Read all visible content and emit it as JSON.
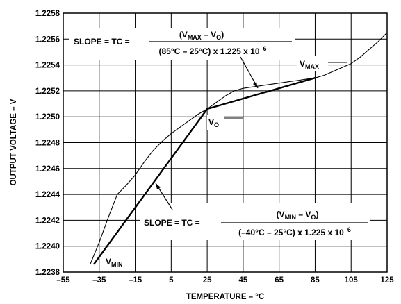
{
  "chart_data": {
    "type": "line",
    "xlabel": "TEMPERATURE – °C",
    "ylabel": "OUTPUT VOLTAGE – V",
    "xlim": [
      -55,
      125
    ],
    "ylim": [
      1.2238,
      1.2258
    ],
    "x_ticks": [
      "–55",
      "–35",
      "–15",
      "5",
      "25",
      "45",
      "65",
      "85",
      "105",
      "125"
    ],
    "y_ticks": [
      "1.2238",
      "1.2240",
      "1.2242",
      "1.2244",
      "1.2246",
      "1.2248",
      "1.2250",
      "1.2252",
      "1.2254",
      "1.2256",
      "1.2258"
    ],
    "grid": true,
    "series": [
      {
        "style": "thin",
        "x": [
          -40,
          -35,
          -30,
          -25,
          -20,
          -15,
          -10,
          -5,
          0,
          5,
          10,
          15,
          20,
          25,
          30,
          35,
          40,
          45,
          50,
          55,
          60,
          65,
          70,
          75,
          80,
          85,
          90,
          95,
          100,
          105,
          110,
          115,
          120,
          125
        ],
        "y": [
          1.22386,
          1.22403,
          1.22422,
          1.2244,
          1.22447,
          1.22455,
          1.22465,
          1.22474,
          1.22481,
          1.22487,
          1.22492,
          1.22497,
          1.22502,
          1.22506,
          1.22511,
          1.22516,
          1.2252,
          1.22522,
          1.22523,
          1.22524,
          1.22525,
          1.22526,
          1.22527,
          1.22528,
          1.22529,
          1.2253,
          1.22532,
          1.22535,
          1.22538,
          1.22541,
          1.22546,
          1.22552,
          1.22558,
          1.22565
        ]
      },
      {
        "style": "bold",
        "x": [
          -38,
          25,
          85
        ],
        "y": [
          1.22386,
          1.22506,
          1.2253
        ]
      }
    ],
    "annotations": {
      "max_formula": {
        "lhs": "SLOPE = TC = ",
        "num_open": "(V",
        "num_sub1": "MAX",
        "num_mid": " – V",
        "num_sub2": "O",
        "num_close": ")",
        "den_main": "(85°C – 25°C) x 1.225 x 10",
        "den_exp": "–6"
      },
      "min_formula": {
        "lhs": "SLOPE = TC = ",
        "num_open": "(V",
        "num_sub1": "MIN",
        "num_mid": " – V",
        "num_sub2": "O",
        "num_close": ")",
        "den_main": "(–40°C – 25°C) x 1.225 x 10",
        "den_exp": "–6"
      },
      "vmax": {
        "main": "V",
        "sub": "MAX"
      },
      "vmin": {
        "main": "V",
        "sub": "MIN"
      },
      "vo": {
        "main": "V",
        "sub": "O"
      }
    }
  }
}
